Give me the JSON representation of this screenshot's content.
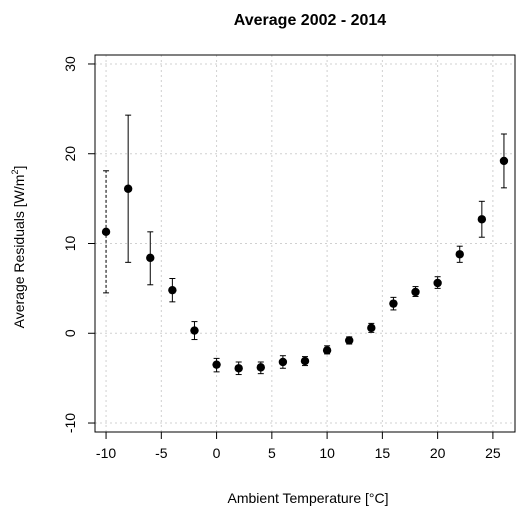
{
  "chart_data": {
    "type": "scatter",
    "title": "Average 2002 - 2014",
    "xlabel": "Ambient Temperature [°C]",
    "ylabel_main": "Average Residuals [W/m",
    "ylabel_sup": "2",
    "ylabel_end": "]",
    "xlim": [
      -11,
      27
    ],
    "ylim": [
      -11,
      31
    ],
    "xticks": [
      -10,
      -5,
      0,
      5,
      10,
      15,
      20,
      25
    ],
    "xtick_labels": [
      "-10",
      "-5",
      "0",
      "5",
      "10",
      "15",
      "20",
      "25"
    ],
    "yticks": [
      -10,
      0,
      10,
      20,
      30
    ],
    "ytick_labels": [
      "-10",
      "0",
      "10",
      "20",
      "30"
    ],
    "grid": true,
    "legend": "none",
    "series": [
      {
        "points": [
          {
            "x": -10,
            "y": 11.3,
            "lo": 4.5,
            "hi": 18.1
          },
          {
            "x": -8,
            "y": 16.1,
            "lo": 7.9,
            "hi": 24.3
          },
          {
            "x": -6,
            "y": 8.4,
            "lo": 5.4,
            "hi": 11.3
          },
          {
            "x": -4,
            "y": 4.8,
            "lo": 3.5,
            "hi": 6.1
          },
          {
            "x": -2,
            "y": 0.3,
            "lo": -0.7,
            "hi": 1.3
          },
          {
            "x": 0,
            "y": -3.5,
            "lo": -4.3,
            "hi": -2.8
          },
          {
            "x": 2,
            "y": -3.9,
            "lo": -4.6,
            "hi": -3.2
          },
          {
            "x": 4,
            "y": -3.8,
            "lo": -4.5,
            "hi": -3.2
          },
          {
            "x": 6,
            "y": -3.2,
            "lo": -3.9,
            "hi": -2.5
          },
          {
            "x": 8,
            "y": -3.1,
            "lo": -3.6,
            "hi": -2.6
          },
          {
            "x": 10,
            "y": -1.9,
            "lo": -2.3,
            "hi": -1.4
          },
          {
            "x": 12,
            "y": -0.8,
            "lo": -1.2,
            "hi": -0.4
          },
          {
            "x": 14,
            "y": 0.6,
            "lo": 0.1,
            "hi": 1.1
          },
          {
            "x": 16,
            "y": 3.3,
            "lo": 2.6,
            "hi": 4.0
          },
          {
            "x": 18,
            "y": 4.6,
            "lo": 4.1,
            "hi": 5.2
          },
          {
            "x": 20,
            "y": 5.6,
            "lo": 5.0,
            "hi": 6.3
          },
          {
            "x": 22,
            "y": 8.8,
            "lo": 7.9,
            "hi": 9.7
          },
          {
            "x": 24,
            "y": 12.7,
            "lo": 10.7,
            "hi": 14.7
          },
          {
            "x": 26,
            "y": 19.2,
            "lo": 16.2,
            "hi": 22.2
          }
        ],
        "color": "#000000"
      }
    ]
  }
}
